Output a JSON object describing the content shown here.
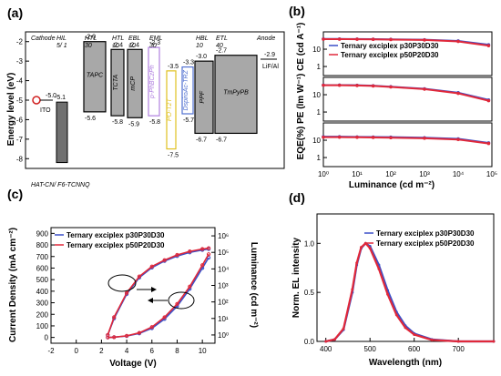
{
  "panels": {
    "a": "(a)",
    "b": "(b)",
    "c": "(c)",
    "d": "(d)"
  },
  "legend_b": [
    "Ternary exciplex p30P30D30",
    "Ternary exciplex p50P20D30"
  ],
  "legend_c": [
    "Ternary exciplex p30P30D30",
    "Ternary exciplex p50P20D30"
  ],
  "legend_d": [
    "Ternary exciplex p30P30D30",
    "Ternary exciplex p50P20D30"
  ],
  "colors": {
    "series1": "#3a4fc8",
    "series2": "#e0283a"
  },
  "chart_data": [
    {
      "type": "diagram",
      "id": "a",
      "ylabel": "Energy level (eV)",
      "ylim": [
        -8.5,
        -1.5
      ],
      "yticks": [
        -2,
        -3,
        -4,
        -5,
        -6,
        -7,
        -8
      ],
      "cathode_label": "Cathode",
      "anode_label": "Anode",
      "cathode_level": "-5.0",
      "cathode_name": "ITO",
      "layers": [
        {
          "name": "HIL",
          "thickness": "5/ 1",
          "homo_label": "-5.1",
          "homo": -5.1,
          "lumo": -8.2
        },
        {
          "name": "HTL",
          "thickness": "30",
          "material": "TAPC",
          "lumo_label": "-2.0",
          "homo_label": "-5.6",
          "lumo": -2.0,
          "homo": -5.6
        },
        {
          "name": "HTL",
          "thickness": "10",
          "material": "TCTA",
          "lumo_label": "-2.4",
          "homo_label": "-5.8",
          "lumo": -2.4,
          "homo": -5.8
        },
        {
          "name": "EBL",
          "thickness": "10",
          "material": "mCP",
          "lumo_label": "-2.4",
          "homo_label": "-5.9",
          "lumo": -2.4,
          "homo": -5.9
        },
        {
          "name": "EML",
          "thickness": "30",
          "material": "p-PhBCzPh",
          "lumo_label": "-2.3",
          "homo_label": "-5.8",
          "lumo": -2.3,
          "homo": -5.8
        },
        {
          "name": "",
          "thickness": "",
          "material": "PO-T2T",
          "lumo_label": "-3.5",
          "homo_label": "-7.5",
          "lumo": -3.5,
          "homo": -7.5
        },
        {
          "name": "",
          "thickness": "",
          "material": "DspiroAc-TRZ",
          "lumo_label": "-3.3",
          "homo_label": "-5.7",
          "lumo": -3.3,
          "homo": -5.7
        },
        {
          "name": "HBL",
          "thickness": "10",
          "material": "PPF",
          "lumo_label": "-3.0",
          "homo_label": "-6.7",
          "lumo": -3.0,
          "homo": -6.7
        },
        {
          "name": "ETL",
          "thickness": "40",
          "material": "TmPyPB",
          "lumo_label": "-2.7",
          "homo_label": "-6.7",
          "lumo": -2.7,
          "homo": -6.7
        }
      ],
      "hil_label": "HAT-CN/ F6-TCNNQ",
      "anode_level": "-2.9",
      "anode_name": "LiF/Al"
    },
    {
      "type": "line",
      "id": "b",
      "xlabel": "Luminance (cd m⁻²)",
      "ylabel": "EQE(%) PE (lm W⁻¹) CE (cd A⁻¹)",
      "xscale": "log",
      "xlim": [
        1,
        100000
      ],
      "xticks": [
        "10⁰",
        "10¹",
        "10²",
        "10³",
        "10⁴",
        "10⁵"
      ],
      "subplots": [
        {
          "name": "CE",
          "yticks": [
            "10",
            "1"
          ],
          "ylim": [
            0.3,
            100
          ],
          "series": [
            {
              "values": [
                39,
                39,
                38.5,
                38,
                37,
                35,
                30,
                18
              ]
            },
            {
              "values": [
                38,
                38,
                37.5,
                37,
                36,
                34,
                28,
                16
              ]
            }
          ]
        },
        {
          "name": "PE",
          "yticks": [
            "10",
            "1"
          ],
          "ylim": [
            0.3,
            100
          ],
          "series": [
            {
              "values": [
                36,
                36,
                35,
                33,
                29,
                22,
                13,
                5
              ]
            },
            {
              "values": [
                35,
                35,
                34,
                32,
                28,
                21,
                12,
                4.5
              ]
            }
          ]
        },
        {
          "name": "EQE",
          "yticks": [
            "10",
            "1"
          ],
          "ylim": [
            0.3,
            100
          ],
          "series": [
            {
              "values": [
                16,
                16,
                15.5,
                15.3,
                15,
                14,
                12,
                7
              ]
            },
            {
              "values": [
                15,
                15,
                14.8,
                14.5,
                14,
                13,
                11,
                6.5
              ]
            }
          ]
        }
      ],
      "x": [
        1,
        3,
        10,
        30,
        100,
        1000,
        10000,
        80000
      ]
    },
    {
      "type": "line",
      "id": "c",
      "xlabel": "Voltage (V)",
      "ylabel": "Current Density (mA cm⁻²)",
      "ylabel2": "Luminance (cd m⁻²)",
      "xlim": [
        -2,
        11
      ],
      "ylim": [
        -50,
        950
      ],
      "xticks": [
        -2,
        0,
        2,
        4,
        6,
        8,
        10
      ],
      "yticks": [
        0,
        100,
        200,
        300,
        400,
        500,
        600,
        700,
        800,
        900
      ],
      "y2ticks": [
        "10⁰",
        "10¹",
        "10²",
        "10³",
        "10⁴",
        "10⁵",
        "10⁶"
      ],
      "x": [
        2.5,
        3,
        4,
        5,
        6,
        7,
        8,
        9,
        10,
        10.5
      ],
      "series": [
        {
          "kind": "current",
          "values": [
            0,
            2,
            12,
            35,
            80,
            160,
            270,
            420,
            600,
            690
          ]
        },
        {
          "kind": "current",
          "values": [
            0,
            2,
            14,
            40,
            90,
            175,
            290,
            440,
            625,
            720
          ]
        },
        {
          "kind": "luminance",
          "values": [
            1,
            10,
            300,
            3000,
            12000,
            30000,
            60000,
            100000,
            140000,
            160000
          ]
        },
        {
          "kind": "luminance",
          "values": [
            1,
            12,
            350,
            3500,
            14000,
            34000,
            70000,
            115000,
            160000,
            180000
          ]
        }
      ]
    },
    {
      "type": "line",
      "id": "d",
      "xlabel": "Wavelength (nm)",
      "ylabel": "Norm. EL intensity",
      "xlim": [
        380,
        780
      ],
      "ylim": [
        0,
        1.3
      ],
      "xticks": [
        400,
        500,
        600,
        700
      ],
      "yticks": [
        "0.0",
        "0.5",
        "1.0"
      ],
      "x": [
        400,
        420,
        440,
        460,
        470,
        480,
        490,
        500,
        520,
        540,
        560,
        580,
        600,
        640,
        700,
        780
      ],
      "series": [
        {
          "values": [
            0,
            0.02,
            0.12,
            0.5,
            0.78,
            0.95,
            1.0,
            0.97,
            0.78,
            0.52,
            0.3,
            0.16,
            0.08,
            0.02,
            0,
            0
          ]
        },
        {
          "values": [
            0,
            0.02,
            0.13,
            0.53,
            0.8,
            0.96,
            1.0,
            0.95,
            0.74,
            0.48,
            0.27,
            0.14,
            0.07,
            0.015,
            0,
            0
          ]
        }
      ]
    }
  ]
}
